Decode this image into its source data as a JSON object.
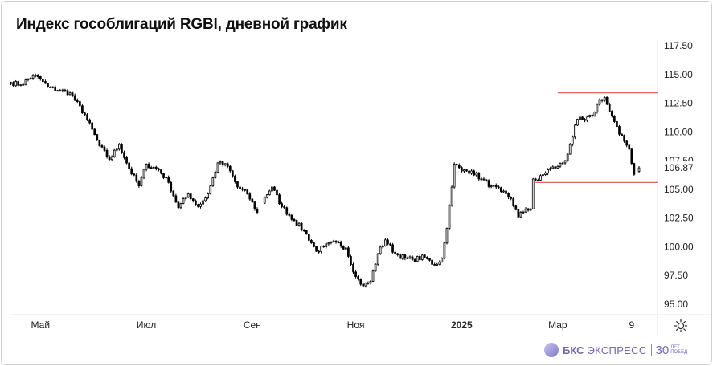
{
  "title": "Индекс гособлигаций RGBI, дневной график",
  "chart_data": {
    "type": "candlestick",
    "ylim": [
      95,
      117.5
    ],
    "y_ticks": [
      "117.50",
      "115.00",
      "112.50",
      "110.00",
      "107.50",
      "105.00",
      "102.50",
      "100.00",
      "97.50",
      "95.00"
    ],
    "y_tick_values": [
      117.5,
      115,
      112.5,
      110,
      107.5,
      105,
      102.5,
      100,
      97.5,
      95
    ],
    "last_price_label": "106.87",
    "last_price": 106.87,
    "x_ticks": [
      {
        "label": "Май",
        "bold": false,
        "index": 12
      },
      {
        "label": "Июл",
        "bold": false,
        "index": 55
      },
      {
        "label": "Сен",
        "bold": false,
        "index": 98
      },
      {
        "label": "Ноя",
        "bold": false,
        "index": 140
      },
      {
        "label": "2025",
        "bold": true,
        "index": 183
      },
      {
        "label": "Мар",
        "bold": false,
        "index": 222
      },
      {
        "label": "9",
        "bold": false,
        "index": 252
      }
    ],
    "total_slots": 263,
    "horizontal_lines": [
      {
        "value": 113.4,
        "start_index": 222,
        "color": "#d9534f"
      },
      {
        "value": 105.6,
        "start_index": 213,
        "color": "#d9534f"
      }
    ],
    "waypoints": [
      [
        0,
        114.3
      ],
      [
        4,
        114.1
      ],
      [
        9,
        114.9
      ],
      [
        12,
        114.6
      ],
      [
        15,
        113.9
      ],
      [
        20,
        113.6
      ],
      [
        24,
        113.4
      ],
      [
        30,
        111.5
      ],
      [
        36,
        108.8
      ],
      [
        40,
        107.6
      ],
      [
        44,
        108.9
      ],
      [
        48,
        106.8
      ],
      [
        52,
        105.3
      ],
      [
        55,
        107.2
      ],
      [
        60,
        106.7
      ],
      [
        64,
        105.6
      ],
      [
        68,
        103.4
      ],
      [
        72,
        104.6
      ],
      [
        76,
        103.5
      ],
      [
        80,
        104.6
      ],
      [
        84,
        107.3
      ],
      [
        88,
        107.0
      ],
      [
        92,
        105.2
      ],
      [
        96,
        104.6
      ],
      [
        100,
        103.0
      ],
      [
        103,
        104.3
      ],
      [
        106,
        105.2
      ],
      [
        110,
        103.5
      ],
      [
        115,
        102.3
      ],
      [
        120,
        101.1
      ],
      [
        124,
        99.6
      ],
      [
        127,
        100.0
      ],
      [
        132,
        100.4
      ],
      [
        136,
        99.9
      ],
      [
        140,
        97.4
      ],
      [
        143,
        96.6
      ],
      [
        146,
        97.0
      ],
      [
        149,
        99.4
      ],
      [
        152,
        100.6
      ],
      [
        156,
        99.4
      ],
      [
        160,
        99.0
      ],
      [
        163,
        98.9
      ],
      [
        168,
        99.1
      ],
      [
        172,
        98.4
      ],
      [
        175,
        99.0
      ],
      [
        177,
        101.6
      ],
      [
        178,
        103.6
      ],
      [
        180,
        107.2
      ],
      [
        183,
        106.6
      ],
      [
        187,
        106.6
      ],
      [
        191,
        105.9
      ],
      [
        195,
        105.3
      ],
      [
        199,
        104.8
      ],
      [
        203,
        104.2
      ],
      [
        206,
        102.6
      ],
      [
        209,
        103.3
      ],
      [
        211,
        103.3
      ],
      [
        212,
        105.9
      ],
      [
        214,
        105.8
      ],
      [
        218,
        106.7
      ],
      [
        222,
        107.0
      ],
      [
        225,
        107.5
      ],
      [
        227,
        108.9
      ],
      [
        230,
        111.1
      ],
      [
        233,
        111.0
      ],
      [
        236,
        111.4
      ],
      [
        239,
        112.8
      ],
      [
        241,
        113.0
      ],
      [
        243,
        111.8
      ],
      [
        245,
        110.9
      ],
      [
        247,
        109.8
      ],
      [
        249,
        109.2
      ],
      [
        251,
        108.5
      ],
      [
        253,
        106.3
      ],
      [
        255,
        106.87
      ]
    ]
  },
  "watermark": {
    "brand": "БКС",
    "name": "ЭКСПРЕСС",
    "anniversary_number": "30",
    "anniversary_line1": "ЛЕТ",
    "anniversary_line2": "ПОБЕД"
  },
  "icons": {
    "settings": "gear-icon",
    "logo": "bks-logo-icon"
  }
}
